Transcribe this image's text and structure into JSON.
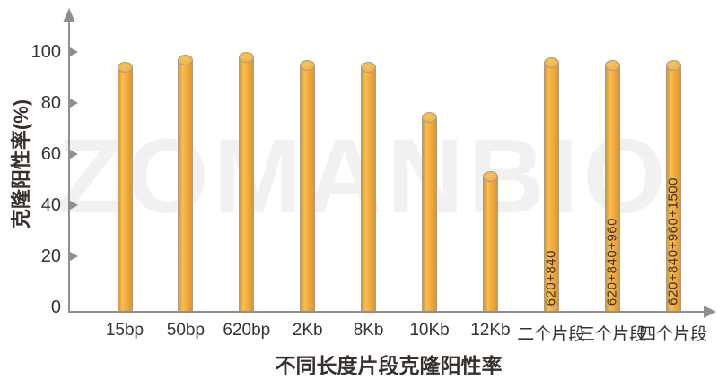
{
  "watermark": {
    "text": "ZOMANBIO"
  },
  "chart_data": {
    "type": "bar",
    "title": "",
    "xlabel": "不同长度片段克隆阳性率",
    "ylabel": "克隆阳性率(%)",
    "ylim": [
      0,
      110
    ],
    "yticks": [
      0,
      20,
      40,
      60,
      80,
      100
    ],
    "grid": false,
    "legend": false,
    "categories": [
      "15bp",
      "50bp",
      "620bp",
      "2Kb",
      "8Kb",
      "10Kb",
      "12Kb",
      "二个片段",
      "三个片段",
      "四个片段"
    ],
    "values": [
      94,
      97,
      98,
      95,
      94,
      75,
      52,
      96,
      95,
      95
    ],
    "bar_annotations": [
      "",
      "",
      "",
      "",
      "",
      "",
      "",
      "620+840",
      "620+840+960",
      "620+840+960+1500"
    ],
    "colors": {
      "bar_body": "#F2A93B",
      "bar_body_light": "#F7BD4F",
      "bar_body_dark": "#DB9831",
      "bar_top": "#F3B44A",
      "bar_outline": "#9E9E9E",
      "axis": "#8F8F8F",
      "text": "#3A3532",
      "watermark": "#F2F1F2"
    }
  }
}
